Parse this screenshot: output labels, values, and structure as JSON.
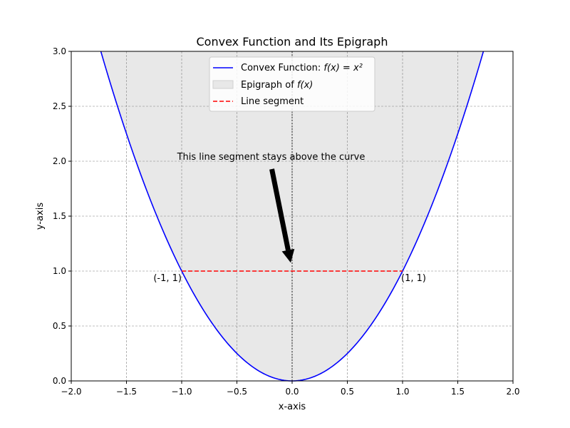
{
  "chart_data": {
    "type": "line",
    "title": "Convex Function and Its Epigraph",
    "xlabel": "x-axis",
    "ylabel": "y-axis",
    "xlim": [
      -2.0,
      2.0
    ],
    "ylim": [
      0.0,
      3.0
    ],
    "x_ticks": [
      -2.0,
      -1.5,
      -1.0,
      -0.5,
      0.0,
      0.5,
      1.0,
      1.5,
      2.0
    ],
    "x_tick_labels": [
      "−2.0",
      "−1.5",
      "−1.0",
      "−0.5",
      "0.0",
      "0.5",
      "1.0",
      "1.5",
      "2.0"
    ],
    "y_ticks": [
      0.0,
      0.5,
      1.0,
      1.5,
      2.0,
      2.5,
      3.0
    ],
    "y_tick_labels": [
      "0.0",
      "0.5",
      "1.0",
      "1.5",
      "2.0",
      "2.5",
      "3.0"
    ],
    "grid": true,
    "legend_position": "top-center",
    "series": [
      {
        "kind": "curve",
        "function": "x^2",
        "legend_prefix": "Convex Function: ",
        "legend_math": "f(x) = x²",
        "color": "#0000ff"
      },
      {
        "kind": "fill-above-curve",
        "legend_prefix": "Epigraph of ",
        "legend_math": "f(x)",
        "color": "#e8e8e8"
      },
      {
        "kind": "segment",
        "legend_prefix": "Line segment",
        "legend_math": "",
        "x": [
          -1,
          1
        ],
        "y": [
          1,
          1
        ],
        "color": "#ff0000"
      }
    ],
    "reference_line": {
      "x": 0
    },
    "annotations": [
      {
        "text": "(-1, 1)",
        "x": -1,
        "y": 1
      },
      {
        "text": "(1, 1)",
        "x": 1,
        "y": 1
      }
    ],
    "arrow_annotation": {
      "text": "This line segment stays above the curve",
      "text_xy": [
        -0.1,
        2.0
      ],
      "point_xy": [
        0,
        1.05
      ]
    }
  }
}
